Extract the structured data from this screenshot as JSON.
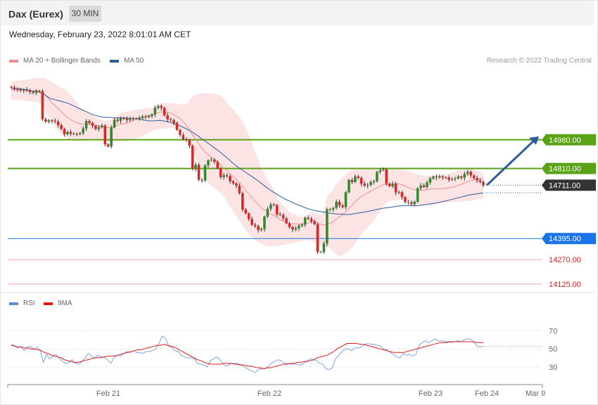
{
  "header": {
    "instrument": "Dax (Eurex)",
    "timeframe": "30 MIN"
  },
  "datetime": "Wednesday, February 23, 2022 8:01:01 AM CET",
  "credit": "Research © 2022 Trading Central",
  "legend_main": [
    {
      "label": "MA 20 + Bollinger Bands",
      "color": "#f28e8e"
    },
    {
      "label": "MA 50",
      "color": "#2e5c9e"
    }
  ],
  "legend_rsi": [
    {
      "label": "RSI",
      "color": "#5b8dd9"
    },
    {
      "label": "9MA",
      "color": "#e31a1c"
    }
  ],
  "colors": {
    "resistance": "#5aa316",
    "support_blue": "#1a73e8",
    "support_red": "#e31a1c",
    "last_price": "#333333",
    "band_fill": "#fde4e4",
    "ma20": "#f28e8e",
    "ma50": "#2e5c9e",
    "candle_up": "#2e8b2e",
    "candle_down": "#d42a2a",
    "arrow": "#2e5c9e"
  },
  "chart_data": [
    {
      "type": "candlestick",
      "title": "Dax (Eurex)",
      "timeframe": "30 MIN",
      "ylim": [
        14100,
        15350
      ],
      "x_ticks": [
        "Feb 21",
        "Feb 22",
        "Feb 23",
        "Feb 24",
        "Mar 9"
      ],
      "levels": [
        {
          "value": 14980.0,
          "label": "14980.00",
          "kind": "resistance"
        },
        {
          "value": 14810.0,
          "label": "14810.00",
          "kind": "resistance"
        },
        {
          "value": 14711.0,
          "label": "14711.00",
          "kind": "last-price"
        },
        {
          "value": 14395.0,
          "label": "14395.00",
          "kind": "support"
        },
        {
          "value": 14270.0,
          "label": "14270.00",
          "kind": "support"
        },
        {
          "value": 14125.0,
          "label": "14125.00",
          "kind": "support"
        }
      ],
      "closes": [
        15290,
        15281,
        15279,
        15272,
        15277,
        15271,
        15263,
        15258,
        15271,
        15268,
        15102,
        15087,
        15095,
        15093,
        15088,
        15067,
        15044,
        15013,
        15027,
        15015,
        15015,
        15013,
        15019,
        15047,
        15091,
        15080,
        15063,
        15044,
        15054,
        15064,
        14953,
        14941,
        15053,
        15098,
        15092,
        15109,
        15106,
        15097,
        15107,
        15106,
        15106,
        15108,
        15117,
        15114,
        15120,
        15131,
        15170,
        15180,
        15169,
        15125,
        15101,
        15096,
        15080,
        15039,
        15009,
        14984,
        14978,
        14945,
        14808,
        14832,
        14743,
        14739,
        14828,
        14858,
        14862,
        14849,
        14811,
        14759,
        14770,
        14765,
        14734,
        14722,
        14708,
        14663,
        14566,
        14544,
        14511,
        14476,
        14468,
        14445,
        14451,
        14525,
        14571,
        14597,
        14593,
        14538,
        14534,
        14514,
        14485,
        14463,
        14448,
        14456,
        14470,
        14477,
        14518,
        14512,
        14497,
        14480,
        14315,
        14315,
        14365,
        14567,
        14568,
        14576,
        14613,
        14591,
        14581,
        14669,
        14742,
        14729,
        14763,
        14755,
        14720,
        14709,
        14712,
        14729,
        14735,
        14790,
        14800,
        14805,
        14720,
        14705,
        14720,
        14668,
        14670,
        14640,
        14612,
        14609,
        14598,
        14613,
        14693,
        14710,
        14700,
        14728,
        14752,
        14762,
        14757,
        14763,
        14757,
        14756,
        14743,
        14747,
        14751,
        14763,
        14755,
        14778,
        14790,
        14769,
        14753,
        14739,
        14730,
        14711
      ],
      "ma20": [
        15275,
        15278,
        15279,
        15277,
        15276,
        15274,
        15272,
        15270,
        15271,
        15269,
        15262,
        15242,
        15223,
        15201,
        15181,
        15165,
        15146,
        15128,
        15111,
        15100,
        15089,
        15080,
        15075,
        15073,
        15072,
        15072,
        15070,
        15066,
        15063,
        15060,
        15055,
        15051,
        15052,
        15060,
        15066,
        15072,
        15076,
        15078,
        15085,
        15095,
        15106,
        15110,
        15114,
        15119,
        15123,
        15126,
        15132,
        15140,
        15146,
        15146,
        15142,
        15137,
        15128,
        15117,
        15106,
        15088,
        15065,
        15040,
        15010,
        14984,
        14956,
        14928,
        14907,
        14891,
        14877,
        14863,
        14848,
        14831,
        14811,
        14796,
        14779,
        14762,
        14746,
        14726,
        14704,
        14680,
        14658,
        14637,
        14615,
        14597,
        14576,
        14564,
        14550,
        14540,
        14533,
        14519,
        14507,
        14498,
        14490,
        14483,
        14480,
        14482,
        14480,
        14480,
        14483,
        14488,
        14495,
        14496,
        14490,
        14479,
        14475,
        14479,
        14485,
        14495,
        14510,
        14524,
        14537,
        14553,
        14573,
        14591,
        14612,
        14630,
        14645,
        14655,
        14666,
        14675,
        14686,
        14696,
        14705,
        14715,
        14715,
        14715,
        14718,
        14719,
        14718,
        14713,
        14706,
        14697,
        14690,
        14684,
        14680,
        14680,
        14681,
        14684,
        14687,
        14690,
        14690,
        14690,
        14691,
        14693,
        14697,
        14699,
        14703,
        14711,
        14717,
        14725,
        14733,
        14738,
        14743,
        14746,
        14750,
        14753
      ],
      "bb_upper": [
        15320,
        15326,
        15330,
        15332,
        15335,
        15337,
        15340,
        15344,
        15347,
        15347,
        15347,
        15345,
        15335,
        15322,
        15310,
        15300,
        15290,
        15280,
        15267,
        15244,
        15220,
        15195,
        15173,
        15160,
        15147,
        15139,
        15127,
        15116,
        15105,
        15097,
        15094,
        15094,
        15096,
        15110,
        15125,
        15137,
        15147,
        15148,
        15150,
        15155,
        15160,
        15161,
        15163,
        15167,
        15170,
        15171,
        15174,
        15185,
        15196,
        15200,
        15199,
        15197,
        15197,
        15192,
        15190,
        15190,
        15192,
        15211,
        15240,
        15247,
        15254,
        15255,
        15256,
        15257,
        15255,
        15254,
        15249,
        15241,
        15227,
        15200,
        15177,
        15160,
        15135,
        15117,
        15084,
        15050,
        15006,
        14958,
        14908,
        14862,
        14809,
        14778,
        14743,
        14709,
        14688,
        14643,
        14611,
        14590,
        14570,
        14551,
        14540,
        14538,
        14527,
        14522,
        14525,
        14536,
        14550,
        14547,
        14538,
        14534,
        14570,
        14644,
        14665,
        14685,
        14720,
        14741,
        14754,
        14772,
        14796,
        14806,
        14816,
        14816,
        14815,
        14812,
        14808,
        14806,
        14805,
        14803,
        14803,
        14806,
        14803,
        14803,
        14806,
        14805,
        14804,
        14803,
        14800,
        14795,
        14788,
        14780,
        14774,
        14773,
        14767,
        14766,
        14768,
        14770,
        14771,
        14772,
        14772,
        14775,
        14781,
        14785,
        14792,
        14804,
        14808,
        14812,
        14815,
        14808,
        14802,
        14796,
        14790,
        14780
      ],
      "bb_lower": [
        15220,
        15218,
        15218,
        15215,
        15213,
        15211,
        15208,
        15205,
        15205,
        15200,
        15185,
        15140,
        15112,
        15083,
        15055,
        15035,
        15017,
        15000,
        14985,
        14980,
        14975,
        14973,
        14973,
        14973,
        14976,
        14978,
        14978,
        14976,
        14977,
        14976,
        14972,
        14970,
        14968,
        14967,
        14969,
        14970,
        14972,
        14974,
        14976,
        14980,
        14988,
        14994,
        15004,
        15014,
        15024,
        15029,
        15039,
        15042,
        15044,
        15045,
        15047,
        15050,
        15049,
        15044,
        15038,
        15020,
        14997,
        14962,
        14910,
        14875,
        14831,
        14785,
        14751,
        14723,
        14707,
        14693,
        14678,
        14662,
        14642,
        14612,
        14583,
        14553,
        14527,
        14500,
        14474,
        14444,
        14420,
        14403,
        14388,
        14372,
        14362,
        14354,
        14350,
        14350,
        14348,
        14350,
        14354,
        14356,
        14359,
        14363,
        14367,
        14371,
        14377,
        14380,
        14384,
        14384,
        14379,
        14373,
        14365,
        14355,
        14350,
        14345,
        14335,
        14320,
        14298,
        14290,
        14295,
        14310,
        14323,
        14337,
        14370,
        14395,
        14420,
        14441,
        14462,
        14480,
        14505,
        14530,
        14559,
        14590,
        14608,
        14616,
        14620,
        14623,
        14625,
        14624,
        14624,
        14619,
        14612,
        14605,
        14597,
        14593,
        14594,
        14593,
        14593,
        14593,
        14598,
        14602,
        14605,
        14607,
        14608,
        14611,
        14611,
        14611,
        14614,
        14616,
        14618,
        14620,
        14622,
        14625,
        14630,
        14632
      ],
      "ma50": [
        15285,
        15284,
        15282,
        15280,
        15278,
        15276,
        15272,
        15268,
        15265,
        15262,
        15255,
        15243,
        15230,
        15222,
        15218,
        15212,
        15208,
        15202,
        15197,
        15189,
        15180,
        15172,
        15163,
        15154,
        15147,
        15138,
        15130,
        15124,
        15119,
        15115,
        15113,
        15113,
        15112,
        15111,
        15110,
        15110,
        15110,
        15108,
        15107,
        15106,
        15105,
        15102,
        15098,
        15095,
        15093,
        15092,
        15093,
        15095,
        15094,
        15091,
        15087,
        15083,
        15077,
        15069,
        15062,
        15054,
        15045,
        15035,
        15024,
        15012,
        14999,
        14985,
        14972,
        14959,
        14946,
        14932,
        14918,
        14904,
        14888,
        14873,
        14857,
        14840,
        14825,
        14812,
        14800,
        14786,
        14774,
        14762,
        14749,
        14736,
        14722,
        14707,
        14693,
        14680,
        14668,
        14657,
        14645,
        14635,
        14625,
        14617,
        14608,
        14600,
        14592,
        14585,
        14578,
        14571,
        14566,
        14561,
        14558,
        14554,
        14551,
        14548,
        14545,
        14543,
        14541,
        14540,
        14538,
        14537,
        14537,
        14540,
        14543,
        14546,
        14549,
        14552,
        14555,
        14559,
        14563,
        14567,
        14571,
        14575,
        14577,
        14579,
        14582,
        14585,
        14588,
        14589,
        14590,
        14590,
        14589,
        14589,
        14589,
        14592,
        14595,
        14597,
        14600,
        14603,
        14606,
        14610,
        14614,
        14618,
        14622,
        14627,
        14632,
        14636,
        14641,
        14646,
        14651,
        14654,
        14657,
        14660,
        14663,
        14666
      ],
      "projection": {
        "from": 14711,
        "to": 15000
      }
    },
    {
      "type": "line",
      "title": "RSI",
      "ylim": [
        15,
        90
      ],
      "y_ticks": [
        70,
        50,
        30
      ],
      "series": [
        {
          "name": "RSI",
          "values": [
            55,
            54,
            51,
            53,
            48,
            52,
            53,
            49,
            52,
            49,
            35,
            44,
            39,
            42,
            44,
            39,
            36,
            34,
            35,
            38,
            34,
            33,
            36,
            40,
            45,
            42,
            40,
            43,
            40,
            41,
            38,
            34,
            40,
            43,
            42,
            45,
            47,
            46,
            48,
            46,
            46,
            45,
            47,
            47,
            48,
            50,
            56,
            64,
            62,
            53,
            52,
            48,
            47,
            43,
            41,
            40,
            40,
            39,
            34,
            33,
            32,
            30,
            37,
            39,
            41,
            38,
            33,
            31,
            33,
            34,
            34,
            33,
            32,
            29,
            27,
            25,
            24,
            27,
            28,
            28,
            30,
            34,
            36,
            38,
            37,
            34,
            34,
            33,
            33,
            33,
            32,
            34,
            36,
            39,
            38,
            37,
            34,
            33,
            28,
            27,
            29,
            39,
            43,
            47,
            50,
            50,
            48,
            51,
            51,
            52,
            55,
            56,
            55,
            55,
            54,
            53,
            50,
            49,
            46,
            44,
            41,
            40,
            45,
            43,
            44,
            42,
            44,
            54,
            57,
            59,
            57,
            59,
            61,
            59,
            59,
            58,
            58,
            57,
            58,
            59,
            58,
            60,
            61,
            61,
            58,
            53,
            52,
            53
          ]
        },
        {
          "name": "9MA",
          "values": [
            54,
            53,
            52,
            52,
            51,
            51,
            50,
            50,
            49,
            48,
            46,
            45,
            43,
            42,
            41,
            40,
            38,
            37,
            36,
            35,
            35,
            36,
            37,
            38,
            39,
            40,
            40,
            41,
            41,
            42,
            42,
            42,
            43,
            44,
            45,
            46,
            47,
            48,
            49,
            49,
            50,
            51,
            52,
            53,
            54,
            54,
            55,
            54,
            53,
            52,
            50,
            48,
            46,
            44,
            42,
            40,
            38,
            37,
            35,
            34,
            33,
            33,
            33,
            33,
            34,
            34,
            34,
            33,
            33,
            32,
            32,
            31,
            31,
            30,
            29,
            29,
            28,
            29,
            29,
            30,
            31,
            32,
            33,
            33,
            34,
            34,
            35,
            35,
            36,
            36,
            37,
            38,
            40,
            41,
            42,
            43,
            45,
            47,
            50,
            52,
            54,
            56,
            56,
            56,
            56,
            55,
            55,
            54,
            53,
            52,
            51,
            50,
            49,
            48,
            47,
            46,
            46,
            46,
            46,
            47,
            48,
            49,
            50,
            51,
            52,
            53,
            54,
            55,
            56,
            57,
            57,
            57,
            58,
            58,
            58,
            58,
            58,
            58,
            58,
            58,
            57,
            57,
            57
          ]
        }
      ],
      "x_ticks": [
        "Feb 21",
        "Feb 22",
        "Feb 23",
        "Feb 24",
        "Mar 9"
      ]
    }
  ]
}
